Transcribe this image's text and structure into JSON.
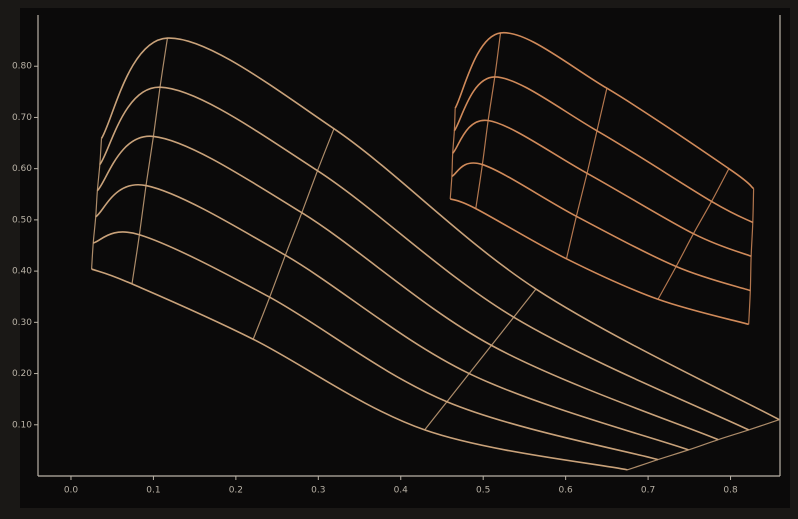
{
  "chart_data": {
    "type": "mesh",
    "xlim": [
      -0.04,
      0.86
    ],
    "ylim": [
      0,
      0.9
    ],
    "xticks": [
      {
        "value": 0,
        "label": "0.0"
      },
      {
        "value": 0.1,
        "label": "0.1"
      },
      {
        "value": 0.2,
        "label": "0.2"
      },
      {
        "value": 0.3,
        "label": "0.3"
      },
      {
        "value": 0.4,
        "label": "0.4"
      },
      {
        "value": 0.5,
        "label": "0.5"
      },
      {
        "value": 0.6,
        "label": "0.6"
      },
      {
        "value": 0.7,
        "label": "0.7"
      },
      {
        "value": 0.8,
        "label": "0.8"
      }
    ],
    "yticks": [
      {
        "value": 0.1,
        "label": "0.10"
      },
      {
        "value": 0.2,
        "label": "0.20"
      },
      {
        "value": 0.3,
        "label": "0.30"
      },
      {
        "value": 0.4,
        "label": "0.40"
      },
      {
        "value": 0.5,
        "label": "0.50"
      },
      {
        "value": 0.6,
        "label": "0.60"
      },
      {
        "value": 0.7,
        "label": "0.70"
      },
      {
        "value": 0.8,
        "label": "0.80"
      }
    ],
    "meshes": [
      {
        "color": "#c9a27a",
        "curves": [
          {
            "x": [
              0.025,
              0.074,
              0.221,
              0.429,
              0.675
            ],
            "y": [
              0.404,
              0.375,
              0.267,
              0.09,
              0.012
            ]
          },
          {
            "x": [
              0.027,
              0.083,
              0.241,
              0.456,
              0.712
            ],
            "y": [
              0.455,
              0.471,
              0.349,
              0.145,
              0.032
            ]
          },
          {
            "x": [
              0.03,
              0.091,
              0.26,
              0.483,
              0.749
            ],
            "y": [
              0.506,
              0.567,
              0.431,
              0.2,
              0.051
            ]
          },
          {
            "x": [
              0.032,
              0.1,
              0.28,
              0.51,
              0.785
            ],
            "y": [
              0.557,
              0.663,
              0.514,
              0.255,
              0.071
            ]
          },
          {
            "x": [
              0.035,
              0.108,
              0.299,
              0.537,
              0.822
            ],
            "y": [
              0.608,
              0.759,
              0.596,
              0.31,
              0.09
            ]
          },
          {
            "x": [
              0.037,
              0.117,
              0.319,
              0.564,
              0.859
            ],
            "y": [
              0.659,
              0.855,
              0.678,
              0.365,
              0.11
            ]
          }
        ]
      },
      {
        "color": "#d08a5a",
        "curves": [
          {
            "x": [
              0.46,
              0.491,
              0.601,
              0.712,
              0.822
            ],
            "y": [
              0.541,
              0.522,
              0.424,
              0.345,
              0.296
            ]
          },
          {
            "x": [
              0.462,
              0.499,
              0.613,
              0.734,
              0.824
            ],
            "y": [
              0.585,
              0.608,
              0.507,
              0.409,
              0.362
            ]
          },
          {
            "x": [
              0.463,
              0.506,
              0.626,
              0.755,
              0.825
            ],
            "y": [
              0.63,
              0.694,
              0.591,
              0.473,
              0.429
            ]
          },
          {
            "x": [
              0.465,
              0.514,
              0.638,
              0.777,
              0.827
            ],
            "y": [
              0.674,
              0.779,
              0.674,
              0.536,
              0.495
            ]
          },
          {
            "x": [
              0.466,
              0.521,
              0.65,
              0.798,
              0.828
            ],
            "y": [
              0.718,
              0.865,
              0.757,
              0.6,
              0.561
            ]
          }
        ]
      }
    ]
  }
}
